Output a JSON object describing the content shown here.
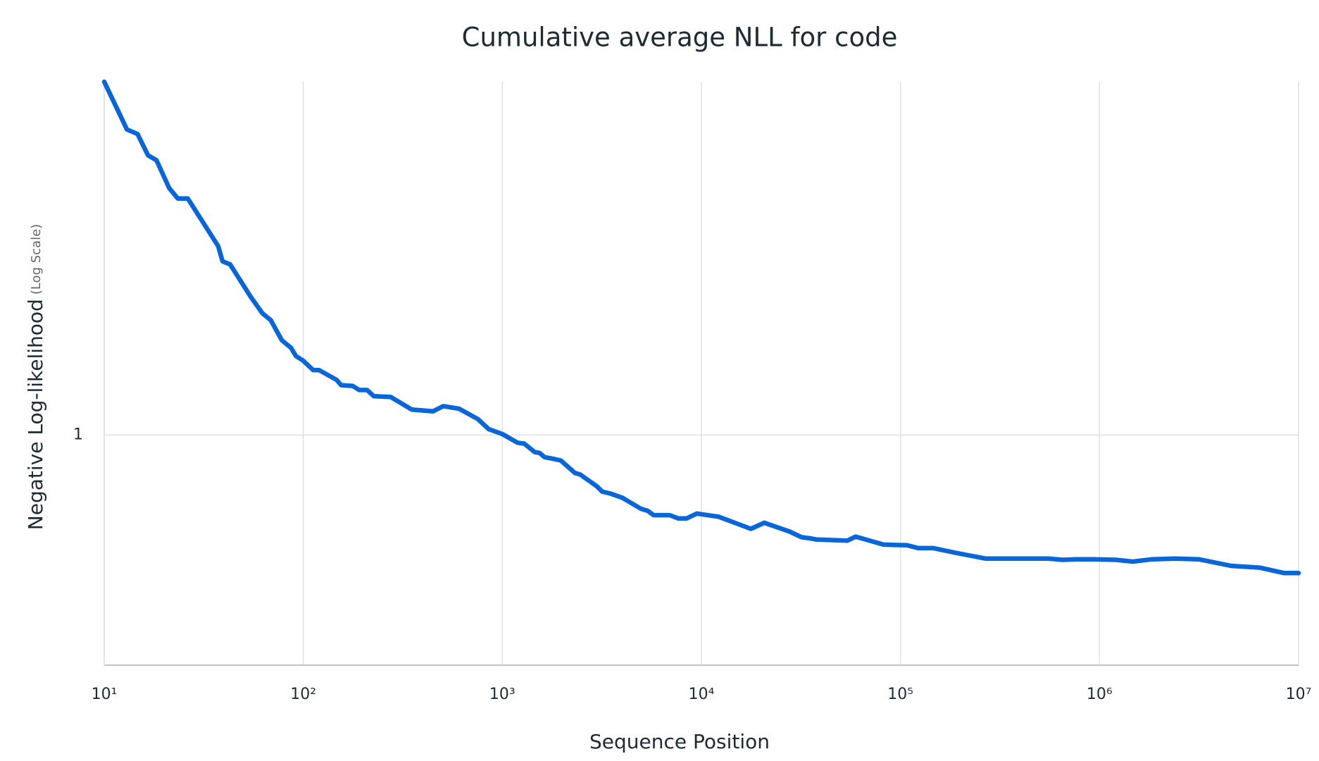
{
  "chart_data": {
    "type": "line",
    "title": "Cumulative average NLL for code",
    "x_label": "Sequence Position",
    "y_label": "Negative Log-likelihood",
    "y_label_note": "(Log Scale)",
    "x_scale": "log",
    "y_scale": "log",
    "grid": true,
    "xlim": [
      10,
      10000000
    ],
    "xticks": [
      {
        "value": 10,
        "label": "10¹"
      },
      {
        "value": 100,
        "label": "10²"
      },
      {
        "value": 1000,
        "label": "10³"
      },
      {
        "value": 10000,
        "label": "10⁴"
      },
      {
        "value": 100000,
        "label": "10⁵"
      },
      {
        "value": 1000000,
        "label": "10⁶"
      },
      {
        "value": 10000000,
        "label": "10⁷"
      }
    ],
    "ylim": [
      0.6,
      2.19
    ],
    "yticks": [
      1
    ],
    "x": [
      10,
      13,
      14.7,
      16.6,
      18.3,
      21.2,
      23.4,
      26.3,
      37.4,
      39.3,
      42.9,
      54.3,
      62.3,
      68.7,
      78,
      86.8,
      92,
      99.5,
      112,
      120,
      147,
      155,
      177,
      191,
      209,
      226,
      275,
      351,
      449,
      505,
      607,
      753,
      855,
      1000,
      1192,
      1289,
      1449,
      1537,
      1630,
      1780,
      1965,
      2318,
      2459,
      2991,
      3171,
      3497,
      4010,
      4969,
      5374,
      5754,
      6929,
      7642,
      8433,
      9486,
      12230,
      17720,
      20720,
      27790,
      31850,
      35140,
      37610,
      53980,
      59560,
      82200,
      108000,
      122800,
      146500,
      188900,
      268600,
      553600,
      653500,
      764000,
      938000,
      1210000,
      1470000,
      1840000,
      2400000,
      3150000,
      4570000,
      6380000,
      8470000,
      10000000
    ],
    "series": [
      {
        "color": "#0866d8",
        "values": [
          2.19,
          1.97,
          1.95,
          1.86,
          1.84,
          1.73,
          1.69,
          1.69,
          1.52,
          1.47,
          1.46,
          1.36,
          1.31,
          1.29,
          1.234,
          1.213,
          1.191,
          1.18,
          1.155,
          1.155,
          1.13,
          1.117,
          1.115,
          1.105,
          1.105,
          1.09,
          1.088,
          1.058,
          1.054,
          1.066,
          1.06,
          1.036,
          1.013,
          1.002,
          0.983,
          0.981,
          0.963,
          0.961,
          0.952,
          0.949,
          0.945,
          0.919,
          0.916,
          0.892,
          0.882,
          0.878,
          0.87,
          0.849,
          0.845,
          0.837,
          0.837,
          0.831,
          0.831,
          0.84,
          0.834,
          0.812,
          0.823,
          0.807,
          0.797,
          0.795,
          0.793,
          0.791,
          0.798,
          0.784,
          0.783,
          0.778,
          0.778,
          0.77,
          0.76,
          0.76,
          0.758,
          0.759,
          0.759,
          0.758,
          0.755,
          0.759,
          0.76,
          0.759,
          0.748,
          0.745,
          0.736,
          0.736
        ]
      }
    ]
  }
}
